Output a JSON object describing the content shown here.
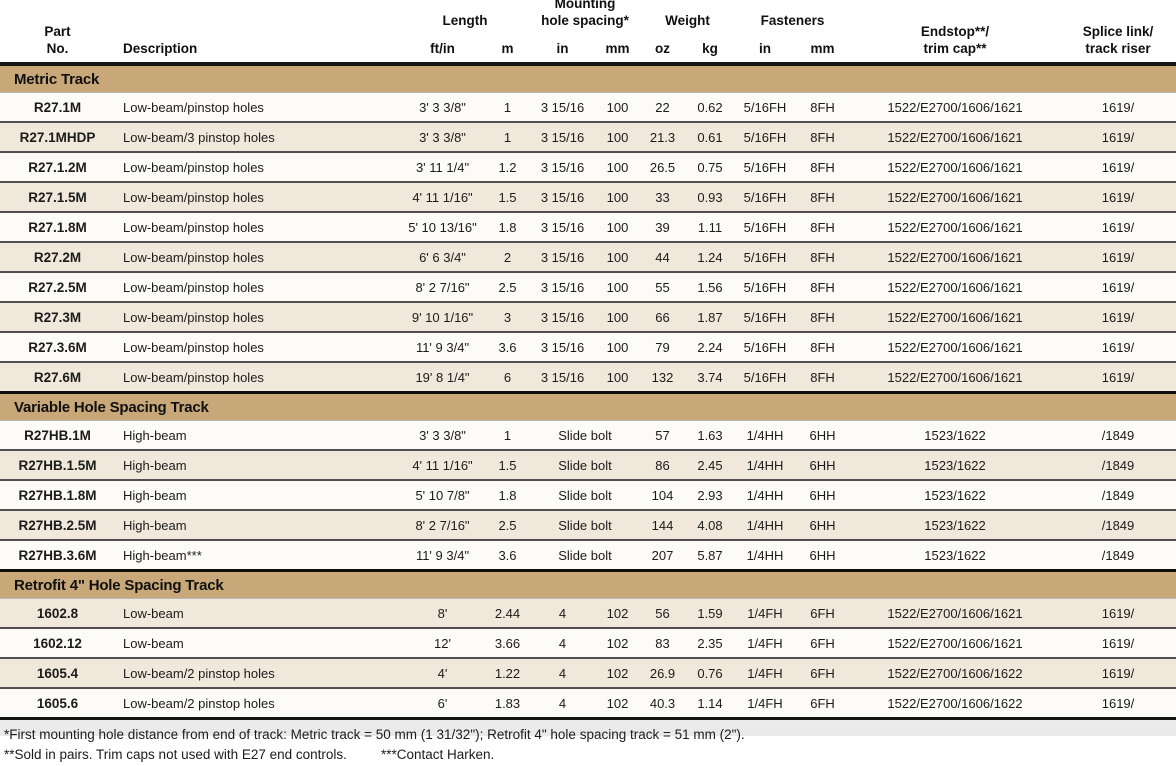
{
  "colors": {
    "section_bar_bg": "#c8a878",
    "shaded_row_bg": "#f0e9db",
    "rule_dark": "#141414",
    "row_rule": "#4f4f4f"
  },
  "header": {
    "part_line1": "Part",
    "part_line2": "No.",
    "description": "Description",
    "length": "Length",
    "length_unit_ftin": "ft/in",
    "length_unit_m": "m",
    "mounting_line1": "Mounting",
    "mounting_line2": "hole spacing*",
    "mounting_unit_in": "in",
    "mounting_unit_mm": "mm",
    "weight": "Weight",
    "weight_unit_oz": "oz",
    "weight_unit_kg": "kg",
    "fasteners": "Fasteners",
    "fasteners_unit_in": "in",
    "fasteners_unit_mm": "mm",
    "endstop_line1": "Endstop**/",
    "endstop_line2": "trim cap**",
    "splice_line1": "Splice link/",
    "splice_line2": "track riser"
  },
  "sections": [
    {
      "title": "Metric Track",
      "shade_first_row": false,
      "rows": [
        {
          "part_no": "R27.1M",
          "description": "Low-beam/pinstop holes",
          "length_ftin": "3' 3 3/8\"",
          "length_m": "1",
          "hole_in": "3 15/16",
          "hole_mm": "100",
          "weight_oz": "22",
          "weight_kg": "0.62",
          "fastener_in": "5/16FH",
          "fastener_mm": "8FH",
          "endstop": "1522/E2700/1606/1621",
          "splice": "1619/"
        },
        {
          "part_no": "R27.1MHDP",
          "description": "Low-beam/3 pinstop holes",
          "length_ftin": "3' 3 3/8\"",
          "length_m": "1",
          "hole_in": "3 15/16",
          "hole_mm": "100",
          "weight_oz": "21.3",
          "weight_kg": "0.61",
          "fastener_in": "5/16FH",
          "fastener_mm": "8FH",
          "endstop": "1522/E2700/1606/1621",
          "splice": "1619/"
        },
        {
          "part_no": "R27.1.2M",
          "description": "Low-beam/pinstop holes",
          "length_ftin": "3' 11 1/4\"",
          "length_m": "1.2",
          "hole_in": "3 15/16",
          "hole_mm": "100",
          "weight_oz": "26.5",
          "weight_kg": "0.75",
          "fastener_in": "5/16FH",
          "fastener_mm": "8FH",
          "endstop": "1522/E2700/1606/1621",
          "splice": "1619/"
        },
        {
          "part_no": "R27.1.5M",
          "description": "Low-beam/pinstop holes",
          "length_ftin": "4' 11 1/16\"",
          "length_m": "1.5",
          "hole_in": "3 15/16",
          "hole_mm": "100",
          "weight_oz": "33",
          "weight_kg": "0.93",
          "fastener_in": "5/16FH",
          "fastener_mm": "8FH",
          "endstop": "1522/E2700/1606/1621",
          "splice": "1619/"
        },
        {
          "part_no": "R27.1.8M",
          "description": "Low-beam/pinstop holes",
          "length_ftin": "5' 10 13/16\"",
          "length_m": "1.8",
          "hole_in": "3 15/16",
          "hole_mm": "100",
          "weight_oz": "39",
          "weight_kg": "1.11",
          "fastener_in": "5/16FH",
          "fastener_mm": "8FH",
          "endstop": "1522/E2700/1606/1621",
          "splice": "1619/"
        },
        {
          "part_no": "R27.2M",
          "description": "Low-beam/pinstop holes",
          "length_ftin": "6' 6 3/4\"",
          "length_m": "2",
          "hole_in": "3 15/16",
          "hole_mm": "100",
          "weight_oz": "44",
          "weight_kg": "1.24",
          "fastener_in": "5/16FH",
          "fastener_mm": "8FH",
          "endstop": "1522/E2700/1606/1621",
          "splice": "1619/"
        },
        {
          "part_no": "R27.2.5M",
          "description": "Low-beam/pinstop holes",
          "length_ftin": "8' 2 7/16\"",
          "length_m": "2.5",
          "hole_in": "3 15/16",
          "hole_mm": "100",
          "weight_oz": "55",
          "weight_kg": "1.56",
          "fastener_in": "5/16FH",
          "fastener_mm": "8FH",
          "endstop": "1522/E2700/1606/1621",
          "splice": "1619/"
        },
        {
          "part_no": "R27.3M",
          "description": "Low-beam/pinstop holes",
          "length_ftin": "9' 10 1/16\"",
          "length_m": "3",
          "hole_in": "3 15/16",
          "hole_mm": "100",
          "weight_oz": "66",
          "weight_kg": "1.87",
          "fastener_in": "5/16FH",
          "fastener_mm": "8FH",
          "endstop": "1522/E2700/1606/1621",
          "splice": "1619/"
        },
        {
          "part_no": "R27.3.6M",
          "description": "Low-beam/pinstop holes",
          "length_ftin": "11' 9 3/4\"",
          "length_m": "3.6",
          "hole_in": "3 15/16",
          "hole_mm": "100",
          "weight_oz": "79",
          "weight_kg": "2.24",
          "fastener_in": "5/16FH",
          "fastener_mm": "8FH",
          "endstop": "1522/E2700/1606/1621",
          "splice": "1619/"
        },
        {
          "part_no": "R27.6M",
          "description": "Low-beam/pinstop holes",
          "length_ftin": "19' 8 1/4\"",
          "length_m": "6",
          "hole_in": "3 15/16",
          "hole_mm": "100",
          "weight_oz": "132",
          "weight_kg": "3.74",
          "fastener_in": "5/16FH",
          "fastener_mm": "8FH",
          "endstop": "1522/E2700/1606/1621",
          "splice": "1619/"
        }
      ]
    },
    {
      "title": "Variable Hole Spacing Track",
      "shade_first_row": false,
      "rows": [
        {
          "part_no": "R27HB.1M",
          "description": "High-beam",
          "length_ftin": "3' 3 3/8\"",
          "length_m": "1",
          "hole_span": "Slide bolt",
          "weight_oz": "57",
          "weight_kg": "1.63",
          "fastener_in": "1/4HH",
          "fastener_mm": "6HH",
          "endstop": "1523/1622",
          "splice": "/1849"
        },
        {
          "part_no": "R27HB.1.5M",
          "description": "High-beam",
          "length_ftin": "4' 11 1/16\"",
          "length_m": "1.5",
          "hole_span": "Slide bolt",
          "weight_oz": "86",
          "weight_kg": "2.45",
          "fastener_in": "1/4HH",
          "fastener_mm": "6HH",
          "endstop": "1523/1622",
          "splice": "/1849"
        },
        {
          "part_no": "R27HB.1.8M",
          "description": "High-beam",
          "length_ftin": "5' 10 7/8\"",
          "length_m": "1.8",
          "hole_span": "Slide bolt",
          "weight_oz": "104",
          "weight_kg": "2.93",
          "fastener_in": "1/4HH",
          "fastener_mm": "6HH",
          "endstop": "1523/1622",
          "splice": "/1849"
        },
        {
          "part_no": "R27HB.2.5M",
          "description": "High-beam",
          "length_ftin": "8' 2 7/16\"",
          "length_m": "2.5",
          "hole_span": "Slide bolt",
          "weight_oz": "144",
          "weight_kg": "4.08",
          "fastener_in": "1/4HH",
          "fastener_mm": "6HH",
          "endstop": "1523/1622",
          "splice": "/1849"
        },
        {
          "part_no": "R27HB.3.6M",
          "description": "High-beam***",
          "length_ftin": "11' 9 3/4\"",
          "length_m": "3.6",
          "hole_span": "Slide bolt",
          "weight_oz": "207",
          "weight_kg": "5.87",
          "fastener_in": "1/4HH",
          "fastener_mm": "6HH",
          "endstop": "1523/1622",
          "splice": "/1849"
        }
      ]
    },
    {
      "title": "Retrofit 4\" Hole Spacing Track",
      "shade_first_row": true,
      "rows": [
        {
          "part_no": "1602.8",
          "description": "Low-beam",
          "length_ftin": "8'",
          "length_m": "2.44",
          "hole_in": "4",
          "hole_mm": "102",
          "weight_oz": "56",
          "weight_kg": "1.59",
          "fastener_in": "1/4FH",
          "fastener_mm": "6FH",
          "endstop": "1522/E2700/1606/1621",
          "splice": "1619/"
        },
        {
          "part_no": "1602.12",
          "description": "Low-beam",
          "length_ftin": "12'",
          "length_m": "3.66",
          "hole_in": "4",
          "hole_mm": "102",
          "weight_oz": "83",
          "weight_kg": "2.35",
          "fastener_in": "1/4FH",
          "fastener_mm": "6FH",
          "endstop": "1522/E2700/1606/1621",
          "splice": "1619/"
        },
        {
          "part_no": "1605.4",
          "description": "Low-beam/2 pinstop holes",
          "length_ftin": "4'",
          "length_m": "1.22",
          "hole_in": "4",
          "hole_mm": "102",
          "weight_oz": "26.9",
          "weight_kg": "0.76",
          "fastener_in": "1/4FH",
          "fastener_mm": "6FH",
          "endstop": "1522/E2700/1606/1622",
          "splice": "1619/"
        },
        {
          "part_no": "1605.6",
          "description": "Low-beam/2 pinstop holes",
          "length_ftin": "6'",
          "length_m": "1.83",
          "hole_in": "4",
          "hole_mm": "102",
          "weight_oz": "40.3",
          "weight_kg": "1.14",
          "fastener_in": "1/4FH",
          "fastener_mm": "6FH",
          "endstop": "1522/E2700/1606/1622",
          "splice": "1619/"
        }
      ]
    }
  ],
  "footnotes": {
    "note1": "*First mounting hole distance from end of track: Metric track = 50 mm (1 31/32\"); Retrofit 4\" hole spacing track = 51 mm (2\").",
    "note2a": "**Sold in pairs. Trim caps not used with E27 end controls.",
    "note2b": "***Contact Harken."
  }
}
